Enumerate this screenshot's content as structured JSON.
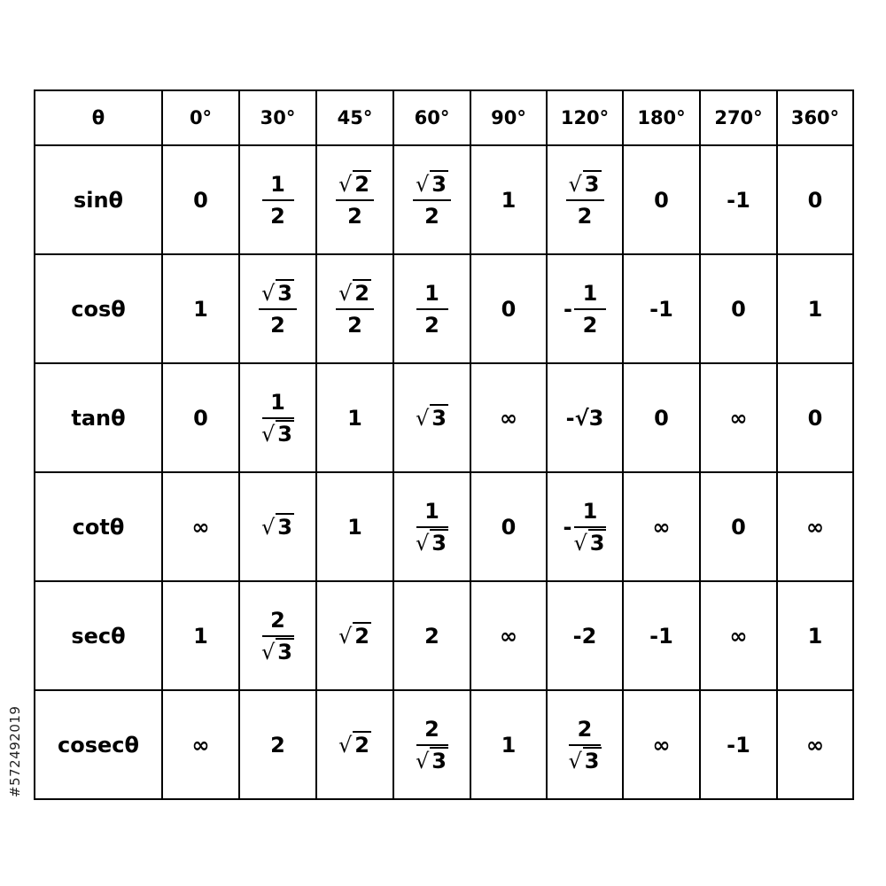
{
  "table": {
    "corner": "θ",
    "columns": [
      "0°",
      "30°",
      "45°",
      "60°",
      "90°",
      "120°",
      "180°",
      "270°",
      "360°"
    ],
    "rows": [
      {
        "label": "sinθ",
        "cells": [
          {
            "v": "0"
          },
          {
            "num": "1",
            "den": "2"
          },
          {
            "num": "√2",
            "den": "2"
          },
          {
            "num": "√3",
            "den": "2"
          },
          {
            "v": "1"
          },
          {
            "num": "√3",
            "den": "2"
          },
          {
            "v": "0"
          },
          {
            "v": "-1"
          },
          {
            "v": "0"
          }
        ]
      },
      {
        "label": "cosθ",
        "cells": [
          {
            "v": "1"
          },
          {
            "num": "√3",
            "den": "2"
          },
          {
            "num": "√2",
            "den": "2"
          },
          {
            "num": "1",
            "den": "2"
          },
          {
            "v": "0"
          },
          {
            "sign": "-",
            "num": "1",
            "den": "2"
          },
          {
            "v": "-1"
          },
          {
            "v": "0"
          },
          {
            "v": "1"
          }
        ]
      },
      {
        "label": "tanθ",
        "cells": [
          {
            "v": "0"
          },
          {
            "num": "1",
            "den": "√3"
          },
          {
            "v": "1"
          },
          {
            "v": "√3"
          },
          {
            "v": "∞"
          },
          {
            "v": "-√3"
          },
          {
            "v": "0"
          },
          {
            "v": "∞"
          },
          {
            "v": "0"
          }
        ]
      },
      {
        "label": "cotθ",
        "cells": [
          {
            "v": "∞"
          },
          {
            "v": "√3"
          },
          {
            "v": "1"
          },
          {
            "num": "1",
            "den": "√3"
          },
          {
            "v": "0"
          },
          {
            "sign": "-",
            "num": "1",
            "den": "√3"
          },
          {
            "v": "∞"
          },
          {
            "v": "0"
          },
          {
            "v": "∞"
          }
        ]
      },
      {
        "label": "secθ",
        "cells": [
          {
            "v": "1"
          },
          {
            "num": "2",
            "den": "√3"
          },
          {
            "v": "√2"
          },
          {
            "v": "2"
          },
          {
            "v": "∞"
          },
          {
            "v": "-2"
          },
          {
            "v": "-1"
          },
          {
            "v": "∞"
          },
          {
            "v": "1"
          }
        ]
      },
      {
        "label": "cosecθ",
        "cells": [
          {
            "v": "∞"
          },
          {
            "v": "2"
          },
          {
            "v": "√2"
          },
          {
            "num": "2",
            "den": "√3"
          },
          {
            "v": "1"
          },
          {
            "num": "2",
            "den": "√3"
          },
          {
            "v": "∞"
          },
          {
            "v": "-1"
          },
          {
            "v": "∞"
          }
        ]
      }
    ]
  },
  "stock_id": "#572492019"
}
